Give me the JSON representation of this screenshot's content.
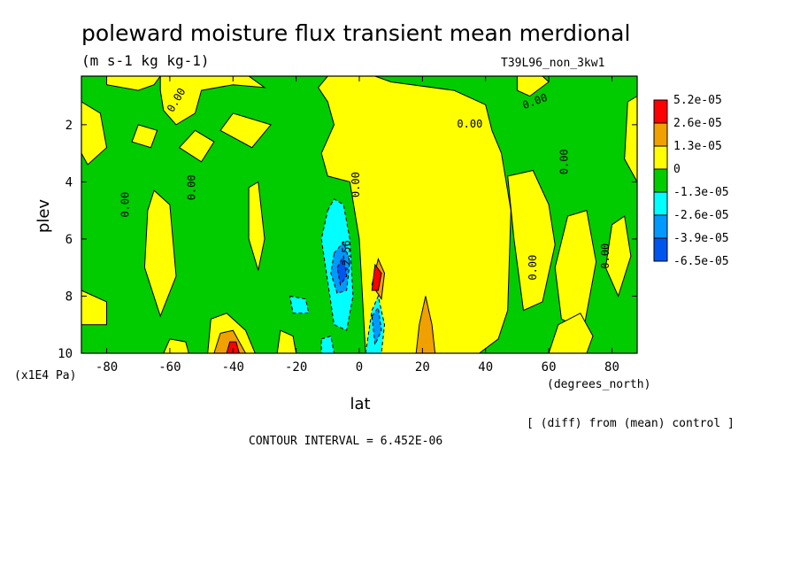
{
  "header": {
    "title": "poleward moisture flux transient mean merdional",
    "units": "(m s-1 kg kg-1)",
    "run_id": "T39L96_non_3kw1"
  },
  "footer": {
    "diff_note": "[ (diff) from (mean) control ]",
    "contour_interval": "CONTOUR INTERVAL = 6.452E-06"
  },
  "chart_data": {
    "type": "contour",
    "xlabel": "lat",
    "x_units": "(degrees_north)",
    "ylabel": "plev",
    "y_units": "(x1E4 Pa)",
    "xlim": [
      -88,
      88
    ],
    "ylim": [
      10,
      0.3
    ],
    "x_ticks": [
      "-80",
      "-60",
      "-40",
      "-20",
      "0",
      "20",
      "40",
      "60",
      "80"
    ],
    "x_tick_values": [
      -80,
      -60,
      -40,
      -20,
      0,
      20,
      40,
      60,
      80
    ],
    "y_ticks": [
      "2",
      "4",
      "6",
      "8",
      "10"
    ],
    "y_tick_values": [
      2,
      4,
      6,
      8,
      10
    ],
    "background_color": "#00cc00",
    "colorbar": {
      "labels": [
        "5.2e-05",
        "2.6e-05",
        "1.3e-05",
        "0",
        "-1.3e-05",
        "-2.6e-05",
        "-3.9e-05",
        "-6.5e-05"
      ],
      "colors": [
        "#ff0000",
        "#f0a000",
        "#ffff00",
        "#00cc00",
        "#00ffff",
        "#0099ff",
        "#0055ee"
      ]
    },
    "contour_labels": [
      {
        "text": "0.00",
        "lat": -57,
        "plev": 1.2,
        "rot": -60
      },
      {
        "text": "0.00",
        "lat": -73,
        "plev": 4.8,
        "rot": -90
      },
      {
        "text": "0.00",
        "lat": -52,
        "plev": 4.2,
        "rot": -90
      },
      {
        "text": "0.00",
        "lat": 0,
        "plev": 4.1,
        "rot": -90
      },
      {
        "text": "0.00",
        "lat": 35,
        "plev": 2.1,
        "rot": 0
      },
      {
        "text": "0.00",
        "lat": 56,
        "plev": 1.3,
        "rot": -20
      },
      {
        "text": "0.00",
        "lat": 66,
        "plev": 3.3,
        "rot": -90
      },
      {
        "text": "0.00",
        "lat": 56,
        "plev": 7.0,
        "rot": -90
      },
      {
        "text": "0.00",
        "lat": 79,
        "plev": 6.6,
        "rot": -90
      },
      {
        "text": "-2.56",
        "lat": -3,
        "plev": 6.6,
        "rot": -90
      }
    ],
    "regions": [
      {
        "level": "pos1",
        "pts": [
          [
            -88,
            0.3
          ],
          [
            -80,
            0.3
          ],
          [
            -80,
            0.6
          ],
          [
            -70,
            0.8
          ],
          [
            -65,
            0.6
          ],
          [
            -63,
            0.3
          ],
          [
            -88,
            0.3
          ]
        ]
      },
      {
        "level": "pos1",
        "pts": [
          [
            -63,
            0.3
          ],
          [
            -35,
            0.3
          ],
          [
            -30,
            0.7
          ],
          [
            -40,
            0.6
          ],
          [
            -50,
            0.8
          ],
          [
            -52,
            1.6
          ],
          [
            -58,
            2.0
          ],
          [
            -62,
            1.5
          ],
          [
            -63,
            0.8
          ],
          [
            -63,
            0.3
          ]
        ]
      },
      {
        "level": "pos1",
        "pts": [
          [
            -88,
            1.2
          ],
          [
            -82,
            1.6
          ],
          [
            -80,
            2.8
          ],
          [
            -86,
            3.4
          ],
          [
            -88,
            3.0
          ]
        ]
      },
      {
        "level": "pos1",
        "pts": [
          [
            -72,
            2.6
          ],
          [
            -66,
            2.8
          ],
          [
            -64,
            2.2
          ],
          [
            -70,
            2.0
          ]
        ]
      },
      {
        "level": "pos1",
        "pts": [
          [
            -57,
            2.8
          ],
          [
            -50,
            3.3
          ],
          [
            -46,
            2.6
          ],
          [
            -52,
            2.2
          ]
        ]
      },
      {
        "level": "pos1",
        "pts": [
          [
            -65,
            4.3
          ],
          [
            -60,
            4.8
          ],
          [
            -58,
            7.3
          ],
          [
            -63,
            8.7
          ],
          [
            -68,
            7.0
          ],
          [
            -67,
            5.0
          ]
        ]
      },
      {
        "level": "pos1",
        "pts": [
          [
            -44,
            2.2
          ],
          [
            -34,
            2.8
          ],
          [
            -28,
            2.0
          ],
          [
            -40,
            1.6
          ]
        ]
      },
      {
        "level": "pos1",
        "pts": [
          [
            -35,
            4.2
          ],
          [
            -32,
            4.0
          ],
          [
            -30,
            6.0
          ],
          [
            -32,
            7.1
          ],
          [
            -35,
            6.0
          ]
        ]
      },
      {
        "level": "pos1",
        "pts": [
          [
            -88,
            7.8
          ],
          [
            -80,
            8.2
          ],
          [
            -80,
            9.0
          ],
          [
            -88,
            9.0
          ]
        ]
      },
      {
        "level": "pos1",
        "pts": [
          [
            -10,
            0.3
          ],
          [
            5,
            0.3
          ],
          [
            10,
            0.5
          ],
          [
            30,
            0.8
          ],
          [
            40,
            1.3
          ],
          [
            42,
            2.2
          ],
          [
            45,
            3.0
          ],
          [
            48,
            5.0
          ],
          [
            47,
            8.5
          ],
          [
            44,
            9.5
          ],
          [
            38,
            10
          ],
          [
            2,
            10
          ],
          [
            0,
            6.0
          ],
          [
            -3,
            4.0
          ],
          [
            -10,
            3.8
          ],
          [
            -12,
            3.0
          ],
          [
            -8,
            2.0
          ],
          [
            -10,
            1.2
          ],
          [
            -13,
            0.7
          ]
        ]
      },
      {
        "level": "pos1",
        "pts": [
          [
            50,
            0.3
          ],
          [
            58,
            0.3
          ],
          [
            60,
            0.5
          ],
          [
            54,
            1.0
          ],
          [
            50,
            0.8
          ]
        ]
      },
      {
        "level": "pos1",
        "pts": [
          [
            47,
            3.8
          ],
          [
            55,
            3.6
          ],
          [
            60,
            4.8
          ],
          [
            62,
            6.2
          ],
          [
            58,
            8.2
          ],
          [
            52,
            8.5
          ],
          [
            49,
            6.0
          ]
        ]
      },
      {
        "level": "pos1",
        "pts": [
          [
            66,
            5.2
          ],
          [
            72,
            5.0
          ],
          [
            75,
            6.8
          ],
          [
            71,
            9.2
          ],
          [
            64,
            8.8
          ],
          [
            62,
            7.0
          ]
        ]
      },
      {
        "level": "pos1",
        "pts": [
          [
            80,
            5.5
          ],
          [
            84,
            5.2
          ],
          [
            86,
            6.6
          ],
          [
            82,
            8.0
          ],
          [
            78,
            7.0
          ]
        ]
      },
      {
        "level": "pos1",
        "pts": [
          [
            85,
            1.2
          ],
          [
            88,
            1.0
          ],
          [
            88,
            4.0
          ],
          [
            84,
            3.2
          ]
        ]
      },
      {
        "level": "pos1",
        "pts": [
          [
            -48,
            10
          ],
          [
            -47,
            8.8
          ],
          [
            -42,
            8.6
          ],
          [
            -36,
            9.2
          ],
          [
            -33,
            10
          ]
        ]
      },
      {
        "level": "pos1",
        "pts": [
          [
            -62,
            10
          ],
          [
            -60,
            9.5
          ],
          [
            -55,
            9.6
          ],
          [
            -54,
            10
          ]
        ]
      },
      {
        "level": "pos1",
        "pts": [
          [
            -26,
            10
          ],
          [
            -25,
            9.2
          ],
          [
            -21,
            9.4
          ],
          [
            -20,
            10
          ]
        ]
      },
      {
        "level": "pos1",
        "pts": [
          [
            60,
            10
          ],
          [
            63,
            9.0
          ],
          [
            70,
            8.6
          ],
          [
            74,
            9.4
          ],
          [
            72,
            10
          ]
        ]
      },
      {
        "level": "pos2",
        "pts": [
          [
            -46,
            10
          ],
          [
            -44,
            9.3
          ],
          [
            -40,
            9.2
          ],
          [
            -36,
            10
          ]
        ]
      },
      {
        "level": "pos2",
        "pts": [
          [
            18,
            10
          ],
          [
            19,
            9.0
          ],
          [
            21,
            8.0
          ],
          [
            23,
            9.0
          ],
          [
            24,
            10
          ]
        ]
      },
      {
        "level": "pos2",
        "pts": [
          [
            4,
            7.6
          ],
          [
            6,
            6.7
          ],
          [
            8,
            7.2
          ],
          [
            7,
            8.1
          ]
        ]
      },
      {
        "level": "pos3",
        "pts": [
          [
            4,
            7.8
          ],
          [
            5,
            6.9
          ],
          [
            7,
            7.2
          ],
          [
            6,
            7.8
          ]
        ]
      },
      {
        "level": "pos3",
        "pts": [
          [
            -42,
            10
          ],
          [
            -41,
            9.6
          ],
          [
            -39,
            9.6
          ],
          [
            -38,
            10
          ]
        ]
      },
      {
        "level": "neg1",
        "pts": [
          [
            -10,
            5.0
          ],
          [
            -8,
            4.6
          ],
          [
            -5,
            4.8
          ],
          [
            -3,
            6.0
          ],
          [
            -2,
            8.0
          ],
          [
            -4,
            9.2
          ],
          [
            -8,
            9.0
          ],
          [
            -10,
            7.5
          ],
          [
            -12,
            6.0
          ]
        ]
      },
      {
        "level": "neg1",
        "pts": [
          [
            -22,
            8.0
          ],
          [
            -17,
            8.1
          ],
          [
            -16,
            8.6
          ],
          [
            -21,
            8.6
          ]
        ]
      },
      {
        "level": "neg1",
        "pts": [
          [
            -12,
            9.5
          ],
          [
            -9,
            9.4
          ],
          [
            -8,
            10
          ],
          [
            -12,
            10
          ]
        ]
      },
      {
        "level": "neg1",
        "pts": [
          [
            2,
            10
          ],
          [
            4,
            8.5
          ],
          [
            6,
            8.0
          ],
          [
            8,
            9.0
          ],
          [
            7,
            10
          ]
        ]
      },
      {
        "level": "neg2",
        "pts": [
          [
            -8,
            6.5
          ],
          [
            -5,
            6.1
          ],
          [
            -3,
            6.8
          ],
          [
            -4,
            7.8
          ],
          [
            -7,
            7.9
          ],
          [
            -9,
            7.2
          ]
        ]
      },
      {
        "level": "neg2",
        "pts": [
          [
            4,
            8.7
          ],
          [
            6,
            8.4
          ],
          [
            7,
            9.2
          ],
          [
            5,
            9.7
          ]
        ]
      },
      {
        "level": "neg3",
        "pts": [
          [
            -7,
            7.0
          ],
          [
            -5,
            6.6
          ],
          [
            -4,
            7.3
          ],
          [
            -6,
            7.6
          ]
        ]
      }
    ]
  }
}
